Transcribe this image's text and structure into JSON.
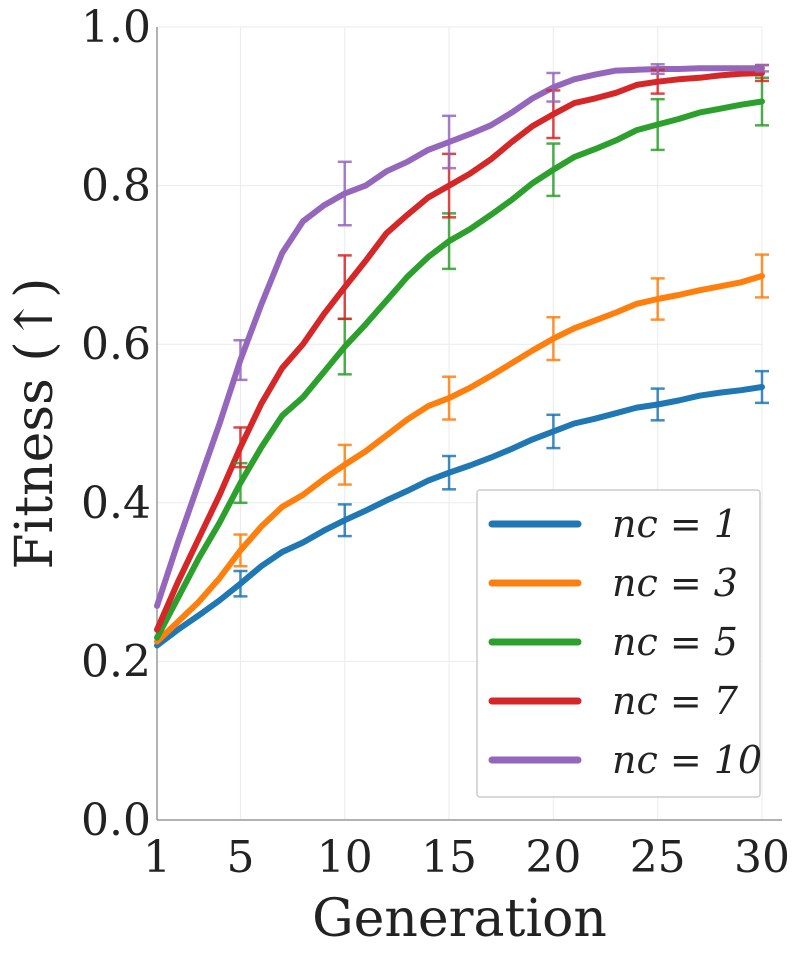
{
  "chart_data": {
    "type": "line",
    "title": "",
    "xlabel": "Generation",
    "ylabel": "Fitness (↑)",
    "xlim": [
      1,
      30
    ],
    "ylim": [
      0.0,
      1.0
    ],
    "grid": true,
    "legend_position": "bottom-right",
    "x_ticks": [
      1,
      5,
      10,
      15,
      20,
      25,
      30
    ],
    "x_tick_labels": [
      "1",
      "5",
      "10",
      "15",
      "20",
      "25",
      "30"
    ],
    "y_ticks": [
      0.0,
      0.2,
      0.4,
      0.6,
      0.8,
      1.0
    ],
    "y_tick_labels": [
      "0.0",
      "0.2",
      "0.4",
      "0.6",
      "0.8",
      "1.0"
    ],
    "x": [
      1,
      2,
      3,
      4,
      5,
      6,
      7,
      8,
      9,
      10,
      11,
      12,
      13,
      14,
      15,
      16,
      17,
      18,
      19,
      20,
      21,
      22,
      23,
      24,
      25,
      26,
      27,
      28,
      29,
      30
    ],
    "error_bar_x": [
      5,
      10,
      15,
      20,
      25,
      30
    ],
    "series": [
      {
        "name": "n_c = 1",
        "legend_label": "nc = 1",
        "color": "#1f77b4",
        "values": [
          0.22,
          0.24,
          0.258,
          0.277,
          0.298,
          0.32,
          0.338,
          0.35,
          0.365,
          0.378,
          0.39,
          0.403,
          0.415,
          0.428,
          0.438,
          0.447,
          0.457,
          0.468,
          0.48,
          0.49,
          0.5,
          0.506,
          0.513,
          0.52,
          0.524,
          0.529,
          0.535,
          0.539,
          0.542,
          0.546
        ],
        "errors": [
          0.016,
          0.02,
          0.021,
          0.021,
          0.02,
          0.02
        ]
      },
      {
        "name": "n_c = 3",
        "legend_label": "nc = 3",
        "color": "#ff7f0e",
        "values": [
          0.225,
          0.25,
          0.275,
          0.305,
          0.34,
          0.37,
          0.395,
          0.41,
          0.43,
          0.448,
          0.465,
          0.485,
          0.505,
          0.522,
          0.532,
          0.545,
          0.56,
          0.576,
          0.592,
          0.607,
          0.62,
          0.63,
          0.64,
          0.651,
          0.657,
          0.662,
          0.668,
          0.673,
          0.678,
          0.686
        ],
        "errors": [
          0.02,
          0.025,
          0.027,
          0.027,
          0.026,
          0.027
        ]
      },
      {
        "name": "n_c = 5",
        "legend_label": "nc = 5",
        "color": "#2ca02c",
        "values": [
          0.23,
          0.28,
          0.33,
          0.375,
          0.425,
          0.47,
          0.51,
          0.533,
          0.565,
          0.597,
          0.625,
          0.655,
          0.685,
          0.71,
          0.73,
          0.745,
          0.763,
          0.782,
          0.803,
          0.82,
          0.836,
          0.846,
          0.857,
          0.87,
          0.877,
          0.884,
          0.892,
          0.897,
          0.902,
          0.906
        ],
        "errors": [
          0.025,
          0.035,
          0.035,
          0.033,
          0.032,
          0.03
        ]
      },
      {
        "name": "n_c = 7",
        "legend_label": "nc = 7",
        "color": "#d62728",
        "values": [
          0.24,
          0.3,
          0.355,
          0.41,
          0.47,
          0.525,
          0.57,
          0.6,
          0.638,
          0.672,
          0.705,
          0.74,
          0.763,
          0.785,
          0.8,
          0.815,
          0.833,
          0.855,
          0.875,
          0.89,
          0.904,
          0.91,
          0.917,
          0.927,
          0.931,
          0.934,
          0.936,
          0.939,
          0.941,
          0.942
        ],
        "errors": [
          0.025,
          0.04,
          0.04,
          0.03,
          0.015,
          0.01
        ]
      },
      {
        "name": "n_c = 10",
        "legend_label": "nc = 10",
        "color": "#9467bd",
        "values": [
          0.27,
          0.35,
          0.425,
          0.5,
          0.58,
          0.65,
          0.715,
          0.755,
          0.775,
          0.79,
          0.8,
          0.818,
          0.83,
          0.845,
          0.855,
          0.865,
          0.876,
          0.892,
          0.91,
          0.924,
          0.934,
          0.94,
          0.945,
          0.946,
          0.947,
          0.947,
          0.948,
          0.948,
          0.948,
          0.948
        ],
        "errors": [
          0.025,
          0.04,
          0.033,
          0.018,
          0.006,
          0.004
        ]
      }
    ]
  }
}
